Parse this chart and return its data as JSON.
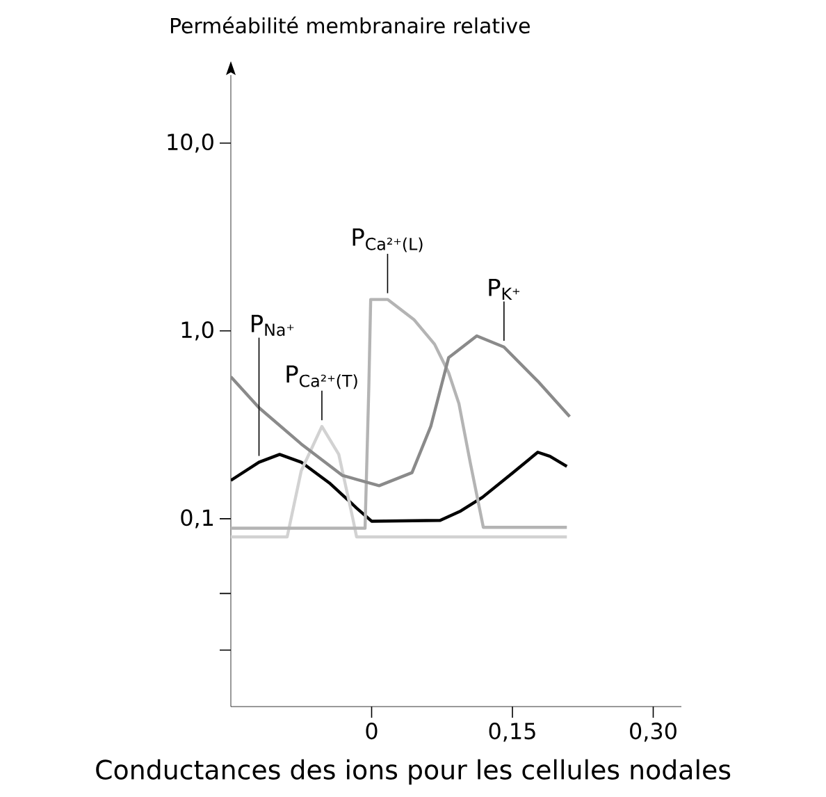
{
  "chart_data": {
    "type": "line",
    "title": "Conductances des ions pour les cellules nodales",
    "ylabel": "Perméabilité membranaire relative",
    "log": "y",
    "xlim": [
      -0.15,
      0.33
    ],
    "ylim": [
      0.01,
      23
    ],
    "xticks": [
      0,
      {
        "value": 0.15,
        "label": "0,15"
      },
      {
        "value": 0.3,
        "label": "0,30"
      }
    ],
    "yticks": [
      {
        "value": 0.02,
        "label": null
      },
      {
        "value": 0.04,
        "label": null
      },
      {
        "value": 0.1,
        "label": "0,1"
      },
      {
        "value": 1,
        "label": "1,0"
      },
      {
        "value": 10,
        "label": "10,0"
      }
    ],
    "grid": false,
    "marker": "none",
    "line_style": "solid",
    "series": [
      {
        "name": "P$_{Na⁺}$",
        "color": "#000000",
        "x": [
          -0.15,
          -0.12,
          -0.098,
          -0.075,
          -0.045,
          -0.016,
          0.0,
          0.073,
          0.095,
          0.118,
          0.15,
          0.177,
          0.19,
          0.208
        ],
        "values": [
          0.16,
          0.2,
          0.22,
          0.2,
          0.155,
          0.114,
          0.097,
          0.098,
          0.11,
          0.13,
          0.175,
          0.226,
          0.215,
          0.19
        ]
      },
      {
        "name": "P$_{Ca²⁺(T)}$",
        "color": "#d2d2d2",
        "x": [
          -0.15,
          -0.09,
          -0.075,
          -0.053,
          -0.035,
          -0.02,
          -0.016,
          0.208
        ],
        "values": [
          0.08,
          0.08,
          0.18,
          0.31,
          0.22,
          0.1,
          0.08,
          0.08
        ]
      },
      {
        "name": "P$_{Ca²⁺(L)}$",
        "color": "#b4b4b4",
        "x": [
          -0.15,
          -0.007,
          -0.003,
          -0.001,
          0.017,
          0.045,
          0.067,
          0.082,
          0.093,
          0.105,
          0.119,
          0.208
        ],
        "values": [
          0.089,
          0.089,
          0.5,
          1.47,
          1.47,
          1.15,
          0.85,
          0.6,
          0.41,
          0.2,
          0.09,
          0.09
        ]
      },
      {
        "name": "P$_{K⁺}$",
        "color": "#8a8a8a",
        "x": [
          -0.15,
          -0.12,
          -0.075,
          -0.031,
          0.008,
          0.043,
          0.063,
          0.082,
          0.112,
          0.141,
          0.177,
          0.211
        ],
        "values": [
          0.57,
          0.39,
          0.25,
          0.17,
          0.15,
          0.176,
          0.31,
          0.72,
          0.94,
          0.82,
          0.54,
          0.35
        ]
      }
    ]
  }
}
